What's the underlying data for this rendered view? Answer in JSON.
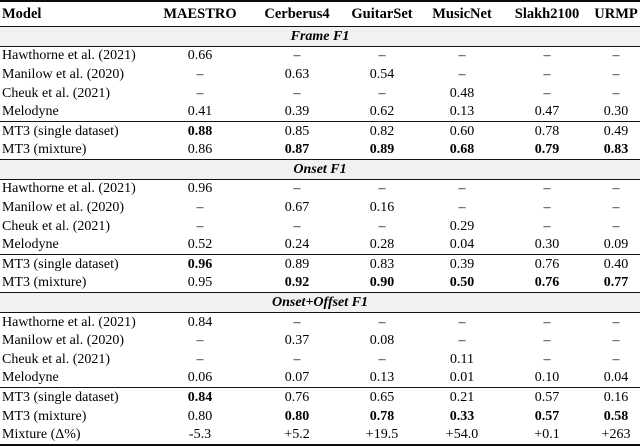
{
  "colors": {
    "text": "#000000",
    "background": "#ffffff",
    "section_band_bg": "#f1f1f1",
    "rule": "#141414"
  },
  "table": {
    "columns": [
      "Model",
      "MAESTRO",
      "Cerberus4",
      "GuitarSet",
      "MusicNet",
      "Slakh2100",
      "URMP"
    ],
    "missing_marker": "–",
    "sections": [
      {
        "title": "Frame F1",
        "groups": [
          {
            "rows": [
              {
                "label": "Hawthorne et al. (2021)",
                "cells": [
                  {
                    "v": "0.66"
                  },
                  {
                    "v": "–"
                  },
                  {
                    "v": "–"
                  },
                  {
                    "v": "–"
                  },
                  {
                    "v": "–"
                  },
                  {
                    "v": "–"
                  }
                ]
              },
              {
                "label": "Manilow et al. (2020)",
                "cells": [
                  {
                    "v": "–"
                  },
                  {
                    "v": "0.63"
                  },
                  {
                    "v": "0.54"
                  },
                  {
                    "v": "–"
                  },
                  {
                    "v": "–"
                  },
                  {
                    "v": "–"
                  }
                ]
              },
              {
                "label": "Cheuk et al. (2021)",
                "cells": [
                  {
                    "v": "–"
                  },
                  {
                    "v": "–"
                  },
                  {
                    "v": "–"
                  },
                  {
                    "v": "0.48"
                  },
                  {
                    "v": "–"
                  },
                  {
                    "v": "–"
                  }
                ]
              },
              {
                "label": "Melodyne",
                "cells": [
                  {
                    "v": "0.41"
                  },
                  {
                    "v": "0.39"
                  },
                  {
                    "v": "0.62"
                  },
                  {
                    "v": "0.13"
                  },
                  {
                    "v": "0.47"
                  },
                  {
                    "v": "0.30"
                  }
                ]
              }
            ]
          },
          {
            "rows": [
              {
                "label": "MT3 (single dataset)",
                "cells": [
                  {
                    "v": "0.88",
                    "b": true
                  },
                  {
                    "v": "0.85"
                  },
                  {
                    "v": "0.82"
                  },
                  {
                    "v": "0.60"
                  },
                  {
                    "v": "0.78"
                  },
                  {
                    "v": "0.49"
                  }
                ]
              },
              {
                "label": "MT3 (mixture)",
                "cells": [
                  {
                    "v": "0.86"
                  },
                  {
                    "v": "0.87",
                    "b": true
                  },
                  {
                    "v": "0.89",
                    "b": true
                  },
                  {
                    "v": "0.68",
                    "b": true
                  },
                  {
                    "v": "0.79",
                    "b": true
                  },
                  {
                    "v": "0.83",
                    "b": true
                  }
                ]
              }
            ]
          }
        ]
      },
      {
        "title": "Onset F1",
        "groups": [
          {
            "rows": [
              {
                "label": "Hawthorne et al. (2021)",
                "cells": [
                  {
                    "v": "0.96"
                  },
                  {
                    "v": "–"
                  },
                  {
                    "v": "–"
                  },
                  {
                    "v": "–"
                  },
                  {
                    "v": "–"
                  },
                  {
                    "v": "–"
                  }
                ]
              },
              {
                "label": "Manilow et al. (2020)",
                "cells": [
                  {
                    "v": "–"
                  },
                  {
                    "v": "0.67"
                  },
                  {
                    "v": "0.16"
                  },
                  {
                    "v": "–"
                  },
                  {
                    "v": "–"
                  },
                  {
                    "v": "–"
                  }
                ]
              },
              {
                "label": "Cheuk et al. (2021)",
                "cells": [
                  {
                    "v": "–"
                  },
                  {
                    "v": "–"
                  },
                  {
                    "v": "–"
                  },
                  {
                    "v": "0.29"
                  },
                  {
                    "v": "–"
                  },
                  {
                    "v": "–"
                  }
                ]
              },
              {
                "label": "Melodyne",
                "cells": [
                  {
                    "v": "0.52"
                  },
                  {
                    "v": "0.24"
                  },
                  {
                    "v": "0.28"
                  },
                  {
                    "v": "0.04"
                  },
                  {
                    "v": "0.30"
                  },
                  {
                    "v": "0.09"
                  }
                ]
              }
            ]
          },
          {
            "rows": [
              {
                "label": "MT3 (single dataset)",
                "cells": [
                  {
                    "v": "0.96",
                    "b": true
                  },
                  {
                    "v": "0.89"
                  },
                  {
                    "v": "0.83"
                  },
                  {
                    "v": "0.39"
                  },
                  {
                    "v": "0.76"
                  },
                  {
                    "v": "0.40"
                  }
                ]
              },
              {
                "label": "MT3 (mixture)",
                "cells": [
                  {
                    "v": "0.95"
                  },
                  {
                    "v": "0.92",
                    "b": true
                  },
                  {
                    "v": "0.90",
                    "b": true
                  },
                  {
                    "v": "0.50",
                    "b": true
                  },
                  {
                    "v": "0.76",
                    "b": true
                  },
                  {
                    "v": "0.77",
                    "b": true
                  }
                ]
              }
            ]
          }
        ]
      },
      {
        "title": "Onset+Offset F1",
        "groups": [
          {
            "rows": [
              {
                "label": "Hawthorne et al. (2021)",
                "cells": [
                  {
                    "v": "0.84"
                  },
                  {
                    "v": "–"
                  },
                  {
                    "v": "–"
                  },
                  {
                    "v": "–"
                  },
                  {
                    "v": "–"
                  },
                  {
                    "v": "–"
                  }
                ]
              },
              {
                "label": "Manilow et al. (2020)",
                "cells": [
                  {
                    "v": "–"
                  },
                  {
                    "v": "0.37"
                  },
                  {
                    "v": "0.08"
                  },
                  {
                    "v": "–"
                  },
                  {
                    "v": "–"
                  },
                  {
                    "v": "–"
                  }
                ]
              },
              {
                "label": "Cheuk et al. (2021)",
                "cells": [
                  {
                    "v": "–"
                  },
                  {
                    "v": "–"
                  },
                  {
                    "v": "–"
                  },
                  {
                    "v": "0.11"
                  },
                  {
                    "v": "–"
                  },
                  {
                    "v": "–"
                  }
                ]
              },
              {
                "label": "Melodyne",
                "cells": [
                  {
                    "v": "0.06"
                  },
                  {
                    "v": "0.07"
                  },
                  {
                    "v": "0.13"
                  },
                  {
                    "v": "0.01"
                  },
                  {
                    "v": "0.10"
                  },
                  {
                    "v": "0.04"
                  }
                ]
              }
            ]
          },
          {
            "rows": [
              {
                "label": "MT3 (single dataset)",
                "cells": [
                  {
                    "v": "0.84",
                    "b": true
                  },
                  {
                    "v": "0.76"
                  },
                  {
                    "v": "0.65"
                  },
                  {
                    "v": "0.21"
                  },
                  {
                    "v": "0.57"
                  },
                  {
                    "v": "0.16"
                  }
                ]
              },
              {
                "label": "MT3 (mixture)",
                "cells": [
                  {
                    "v": "0.80"
                  },
                  {
                    "v": "0.80",
                    "b": true
                  },
                  {
                    "v": "0.78",
                    "b": true
                  },
                  {
                    "v": "0.33",
                    "b": true
                  },
                  {
                    "v": "0.57",
                    "b": true
                  },
                  {
                    "v": "0.58",
                    "b": true
                  }
                ]
              },
              {
                "label": "Mixture (Δ%)",
                "cells": [
                  {
                    "v": "-5.3"
                  },
                  {
                    "v": "+5.2"
                  },
                  {
                    "v": "+19.5"
                  },
                  {
                    "v": "+54.0"
                  },
                  {
                    "v": "+0.1"
                  },
                  {
                    "v": "+263"
                  }
                ]
              }
            ]
          }
        ]
      }
    ]
  }
}
